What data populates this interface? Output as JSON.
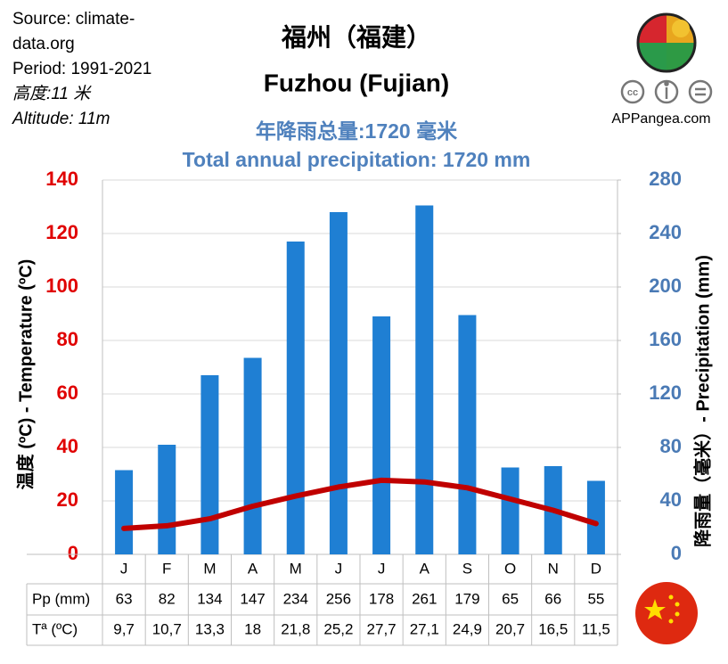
{
  "header": {
    "notes": [
      "Source: climate-",
      "data.org",
      "Period: 1991-2021",
      "高度:11 米",
      "Altitude: 11m"
    ],
    "title_zh": "福州（福建）",
    "title_en": "Fuzhou (Fujian)",
    "site": "APPangea.com"
  },
  "chart_data": {
    "type": "combo",
    "subtitle": [
      "年降雨总量:1720 毫米",
      "Total annual precipitation: 1720 mm"
    ],
    "y_label": "温度 (ºC) - Temperature  (ºC)",
    "y2_label": "降雨量（毫米）- Precipitation  (mm)",
    "categories": [
      "J",
      "F",
      "M",
      "A",
      "M",
      "J",
      "J",
      "A",
      "S",
      "O",
      "N",
      "D"
    ],
    "ylim": [
      0,
      140
    ],
    "yticks": [
      0,
      20,
      40,
      60,
      80,
      100,
      120,
      140
    ],
    "y2lim": [
      0,
      280
    ],
    "y2ticks": [
      0,
      40,
      80,
      120,
      160,
      200,
      240,
      280
    ],
    "grid": true,
    "series": [
      {
        "name": "Pp (mm)",
        "type": "bar",
        "axis": "y2",
        "color": "#1f7fd3",
        "values": [
          63,
          82,
          134,
          147,
          234,
          256,
          178,
          261,
          179,
          65,
          66,
          55
        ]
      },
      {
        "name": "Tª (ºC)",
        "type": "line",
        "color": "#c00000",
        "values": [
          9.7,
          10.7,
          13.3,
          18,
          21.8,
          25.2,
          27.7,
          27.1,
          24.9,
          20.7,
          16.5,
          11.5
        ],
        "value_labels": [
          "9,7",
          "10,7",
          "13,3",
          "18",
          "21,8",
          "25,2",
          "27,7",
          "27,1",
          "24,9",
          "20,7",
          "16,5",
          "11,5"
        ]
      }
    ]
  }
}
